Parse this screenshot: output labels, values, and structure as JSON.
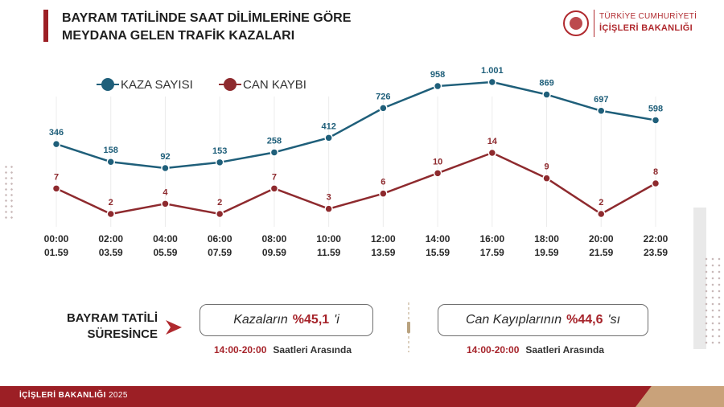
{
  "header": {
    "title_line1": "BAYRAM TATİLİNDE SAAT DİLİMLERİNE GÖRE",
    "title_line2": "MEYDANA GELEN TRAFİK KAZALARI",
    "org_line1": "TÜRKİYE CUMHURİYETİ",
    "org_line2": "İÇİŞLERİ BAKANLIĞI"
  },
  "chart_data": {
    "type": "line",
    "title": "BAYRAM TATİLİNDE SAAT DİLİMLERİNE GÖRE MEYDANA GELEN TRAFİK KAZALARI",
    "categories": [
      {
        "start": "00:00",
        "end": "01.59"
      },
      {
        "start": "02:00",
        "end": "03.59"
      },
      {
        "start": "04:00",
        "end": "05.59"
      },
      {
        "start": "06:00",
        "end": "07.59"
      },
      {
        "start": "08:00",
        "end": "09.59"
      },
      {
        "start": "10:00",
        "end": "11.59"
      },
      {
        "start": "12:00",
        "end": "13.59"
      },
      {
        "start": "14:00",
        "end": "15.59"
      },
      {
        "start": "16:00",
        "end": "17.59"
      },
      {
        "start": "18:00",
        "end": "19.59"
      },
      {
        "start": "20:00",
        "end": "21.59"
      },
      {
        "start": "22:00",
        "end": "23.59"
      }
    ],
    "series": [
      {
        "name": "KAZA SAYISI",
        "color": "#1f5f7a",
        "values": [
          346,
          158,
          92,
          153,
          258,
          412,
          726,
          958,
          1001,
          869,
          697,
          598
        ],
        "labels": [
          "346",
          "158",
          "92",
          "153",
          "258",
          "412",
          "726",
          "958",
          "1.001",
          "869",
          "697",
          "598"
        ]
      },
      {
        "name": "CAN KAYBI",
        "color": "#8e2a2e",
        "values": [
          7,
          2,
          4,
          2,
          7,
          3,
          6,
          10,
          14,
          9,
          2,
          8
        ],
        "labels": [
          "7",
          "2",
          "4",
          "2",
          "7",
          "3",
          "6",
          "10",
          "14",
          "9",
          "2",
          "8"
        ]
      }
    ],
    "legend": "top-left",
    "grid": "vertical"
  },
  "summary": {
    "period_label_line1": "BAYRAM TATİLİ",
    "period_label_line2": "SÜRESİNCE",
    "accidents": {
      "prefix": "Kazaların",
      "value": "%45,1",
      "suffix": "'i",
      "time_range": "14:00-20:00",
      "time_text": "Saatleri Arasında"
    },
    "deaths": {
      "prefix": "Can Kayıplarının",
      "value": "%44,6",
      "suffix": "'sı",
      "time_range": "14:00-20:00",
      "time_text": "Saatleri Arasında"
    }
  },
  "footer": {
    "org": "İÇİŞLERİ BAKANLIĞI",
    "year": "2025"
  },
  "colors": {
    "brand_red": "#9c1f25",
    "kaza_blue": "#1f5f7a",
    "can_red": "#8e2a2e"
  }
}
